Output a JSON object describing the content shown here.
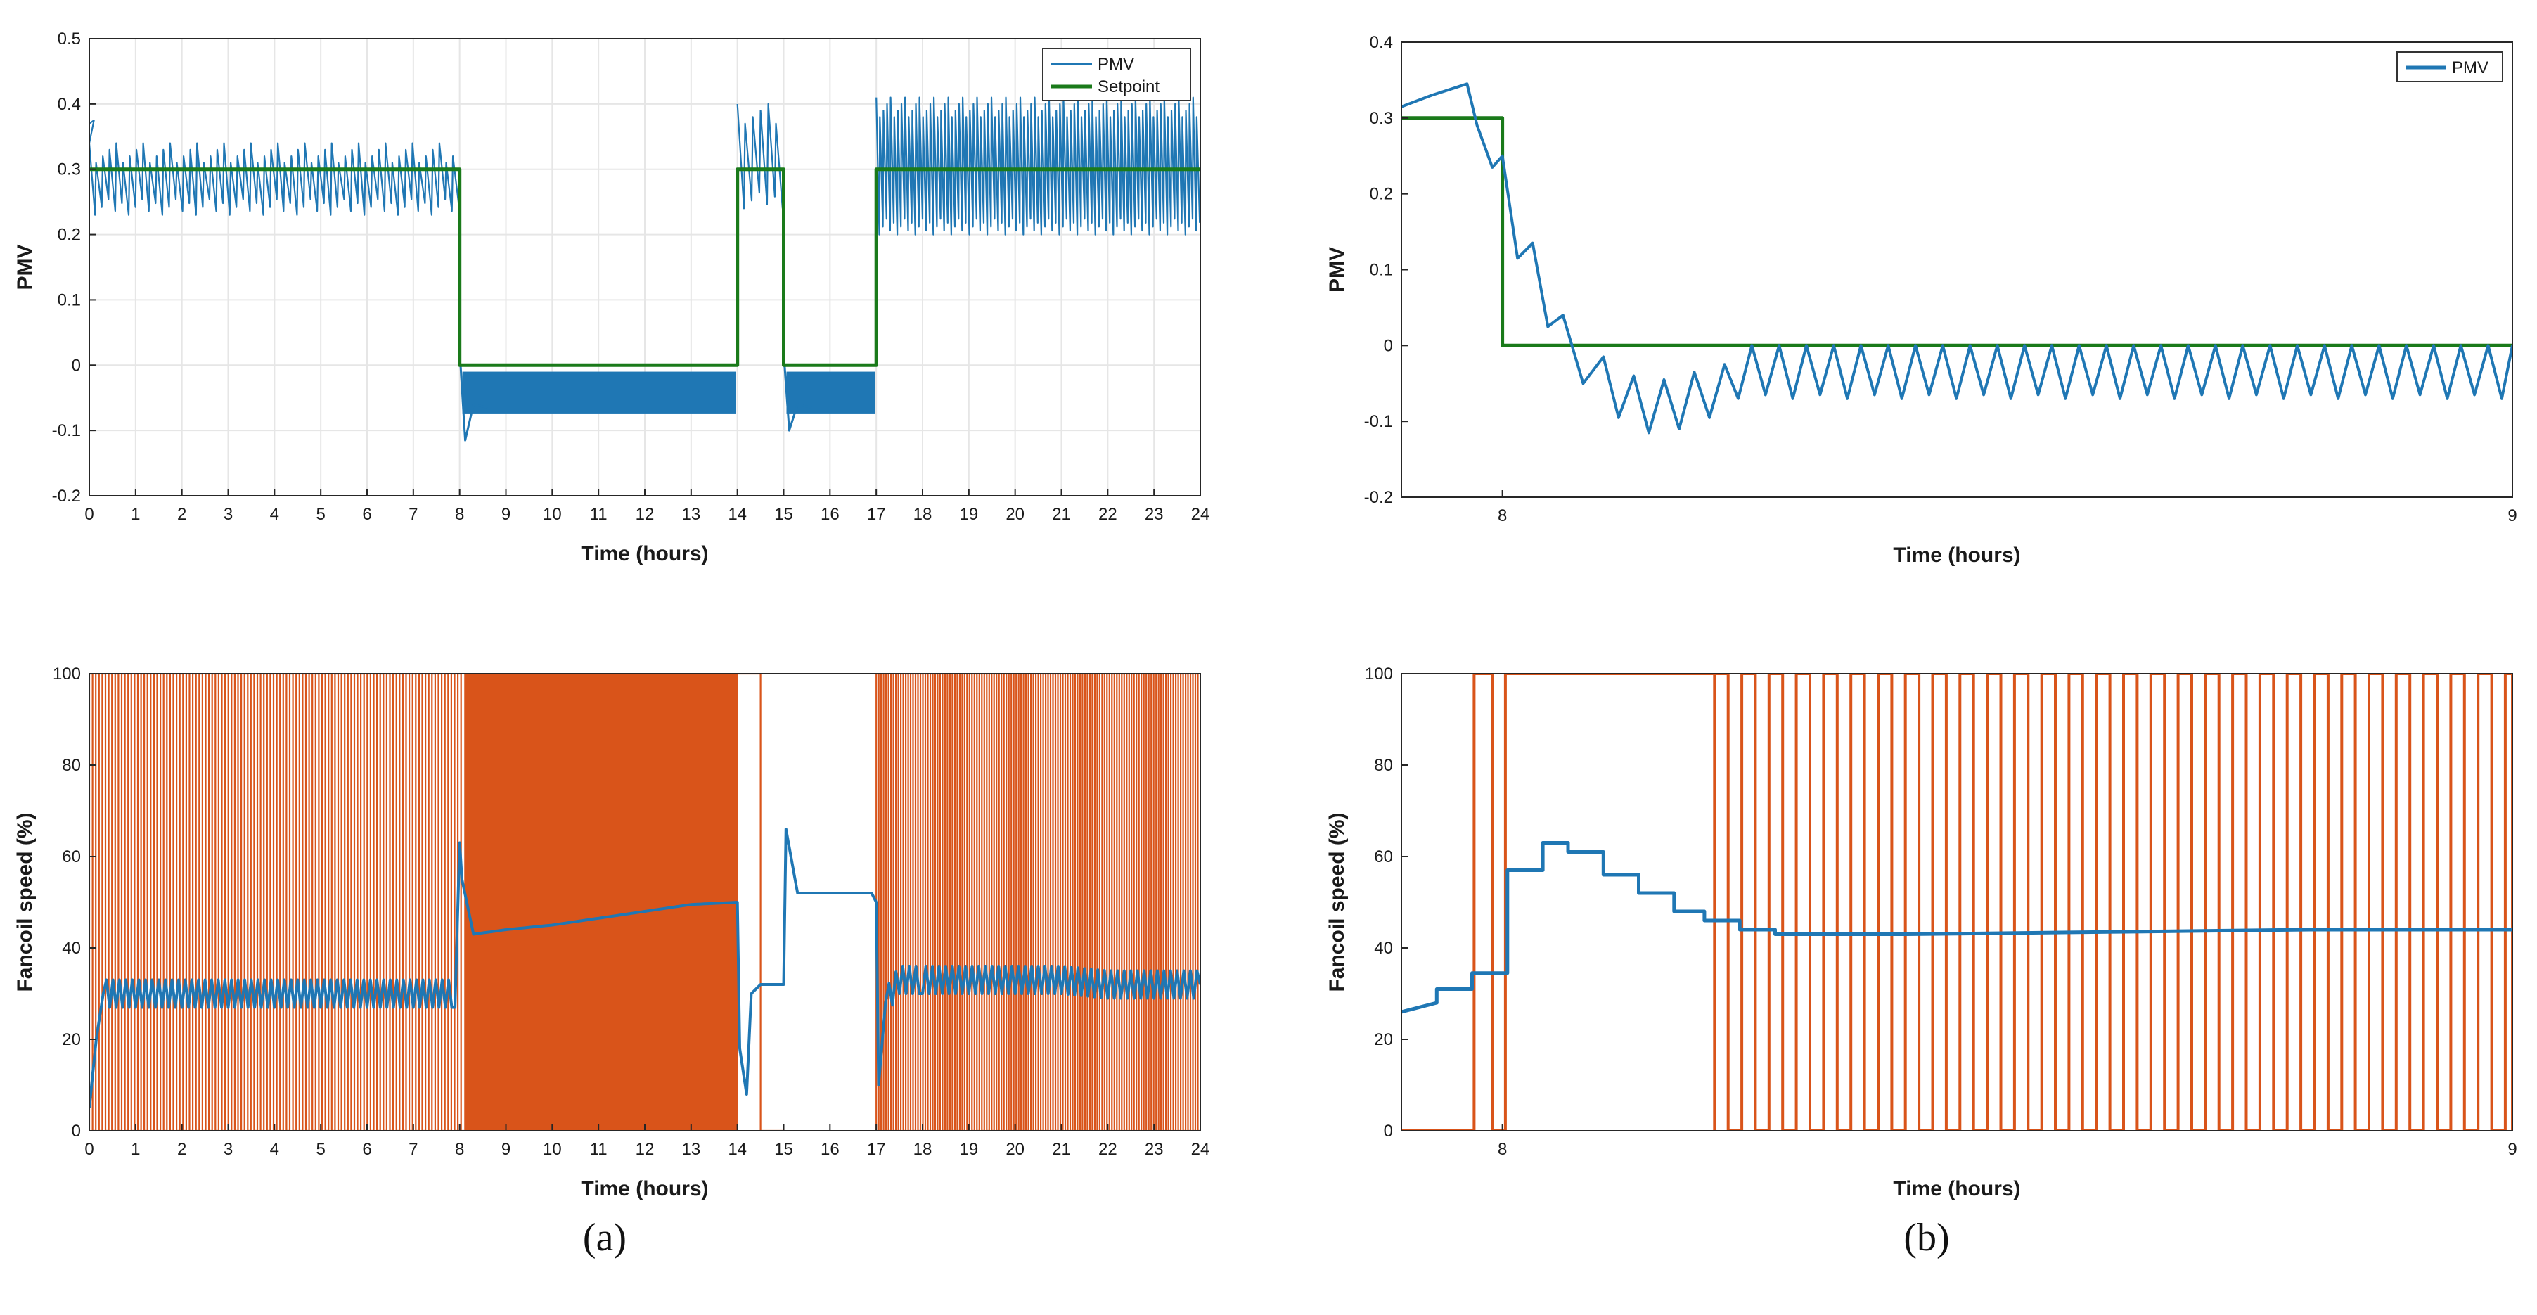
{
  "colors": {
    "pmv": "#1f77b4",
    "setpoint": "#1a7a1a",
    "fan_onoff": "#d9541a",
    "fan_speed": "#1f77b4",
    "grid": "#e6e6e6",
    "axis": "#262626"
  },
  "panel_labels": [
    "(a)",
    "(b)"
  ],
  "chart_data": [
    {
      "type": "line",
      "id": "a-pmv",
      "xlabel": "Time (hours)",
      "ylabel": "PMV",
      "xlim": [
        0,
        24
      ],
      "ylim": [
        -0.2,
        0.5
      ],
      "xticks": [
        0,
        1,
        2,
        3,
        4,
        5,
        6,
        7,
        8,
        9,
        10,
        11,
        12,
        13,
        14,
        15,
        16,
        17,
        18,
        19,
        20,
        21,
        22,
        23,
        24
      ],
      "yticks": [
        -0.2,
        -0.1,
        0,
        0.1,
        0.2,
        0.3,
        0.4,
        0.5
      ],
      "grid": true,
      "legend": {
        "position": "top-right",
        "entries": [
          "PMV",
          "Setpoint"
        ]
      },
      "series": [
        {
          "name": "Setpoint",
          "x": [
            0,
            8,
            8,
            14,
            14,
            15,
            15,
            17,
            17,
            24
          ],
          "y": [
            0.3,
            0.3,
            0,
            0,
            0.3,
            0.3,
            0,
            0,
            0.3,
            0.3
          ]
        },
        {
          "name": "PMV",
          "description_segments": [
            {
              "x_start": 0,
              "x_end": 8,
              "mode": "sawtooth",
              "low": 0.23,
              "high": 0.34,
              "cycles": 55
            },
            {
              "x_start": 8,
              "x_end": 14,
              "mode": "dense-band",
              "low": -0.075,
              "high": 0.0,
              "dip": -0.115
            },
            {
              "x_start": 14,
              "x_end": 15,
              "mode": "sawtooth",
              "low": 0.24,
              "high": 0.4,
              "cycles": 6
            },
            {
              "x_start": 15,
              "x_end": 17,
              "mode": "dense-band",
              "low": -0.075,
              "high": 0.0,
              "dip": -0.1
            },
            {
              "x_start": 17,
              "x_end": 24,
              "mode": "sawtooth",
              "low": 0.2,
              "high": 0.41,
              "cycles": 90
            }
          ]
        }
      ]
    },
    {
      "type": "line",
      "id": "b-pmv",
      "xlabel": "Time (hours)",
      "ylabel": "PMV",
      "xlim": [
        7.9,
        9.0
      ],
      "ylim": [
        -0.2,
        0.4
      ],
      "xticks": [
        8,
        9
      ],
      "yticks": [
        -0.2,
        -0.1,
        0,
        0.1,
        0.2,
        0.3,
        0.4
      ],
      "grid": false,
      "legend": {
        "position": "top-right",
        "entries": [
          "PMV"
        ]
      },
      "series": [
        {
          "name": "Setpoint",
          "x": [
            7.9,
            8.0,
            8.0,
            9.0
          ],
          "y": [
            0.3,
            0.3,
            0,
            0
          ]
        },
        {
          "name": "PMV",
          "x": [
            7.9,
            7.93,
            7.965,
            7.975,
            7.99,
            8.0,
            8.015,
            8.03,
            8.045,
            8.06,
            8.08,
            8.1,
            8.115,
            8.13,
            8.145,
            8.16,
            8.175,
            8.19,
            8.205,
            8.22
          ],
          "y": [
            0.315,
            0.33,
            0.345,
            0.29,
            0.235,
            0.25,
            0.115,
            0.135,
            0.025,
            0.04,
            -0.05,
            -0.015,
            -0.095,
            -0.04,
            -0.115,
            -0.045,
            -0.11,
            -0.035,
            -0.095,
            -0.025
          ],
          "tail": {
            "x_start": 8.22,
            "x_end": 9.0,
            "low": -0.07,
            "high": 0.0,
            "period": 0.027
          }
        }
      ]
    },
    {
      "type": "line",
      "id": "a-fan",
      "xlabel": "Time (hours)",
      "ylabel": "Fancoil speed (%)",
      "xlim": [
        0,
        24
      ],
      "ylim": [
        0,
        100
      ],
      "xticks": [
        0,
        1,
        2,
        3,
        4,
        5,
        6,
        7,
        8,
        9,
        10,
        11,
        12,
        13,
        14,
        15,
        16,
        17,
        18,
        19,
        20,
        21,
        22,
        23,
        24
      ],
      "yticks": [
        0,
        20,
        40,
        60,
        80,
        100
      ],
      "grid": false,
      "series": [
        {
          "name": "Fan on/off",
          "segments": [
            {
              "x_start": 0,
              "x_end": 8.1,
              "mode": "square-wave",
              "low": 0,
              "high": 100,
              "cycles": 58
            },
            {
              "x_start": 8.1,
              "x_end": 14,
              "mode": "solid",
              "low": 0,
              "high": 100
            },
            {
              "x_start": 14,
              "x_end": 15,
              "mode": "square-wave",
              "low": 0,
              "high": 100,
              "cycles": 1
            },
            {
              "x_start": 15,
              "x_end": 17,
              "mode": "off",
              "value": 0
            },
            {
              "x_start": 17,
              "x_end": 24,
              "mode": "square-wave",
              "low": 0,
              "high": 100,
              "cycles": 66
            }
          ]
        },
        {
          "name": "Fan speed",
          "x": [
            0,
            0.15,
            0.3,
            1,
            2,
            3,
            4,
            5,
            6,
            7,
            7.9,
            8.0,
            8.05,
            8.3,
            9,
            10,
            11,
            12,
            13,
            14,
            14.05,
            14.2,
            14.3,
            14.5,
            15.0,
            15.05,
            15.3,
            16,
            16.9,
            17.0,
            17.05,
            17.2,
            17.5,
            18,
            19,
            20,
            21,
            22,
            23,
            24
          ],
          "y": [
            5,
            20,
            30,
            30,
            30,
            30,
            30,
            30,
            30,
            30,
            30,
            63,
            55,
            43,
            44,
            45,
            46.5,
            48,
            49.5,
            50,
            18,
            8,
            30,
            32,
            32,
            66,
            52,
            52,
            52,
            50,
            10,
            28,
            33,
            33,
            33,
            33,
            33,
            32,
            32,
            32
          ],
          "ripple": 3
        }
      ]
    },
    {
      "type": "line",
      "id": "b-fan",
      "xlabel": "Time (hours)",
      "ylabel": "Fancoil speed (%)",
      "xlim": [
        7.9,
        9.0
      ],
      "ylim": [
        0,
        100
      ],
      "xticks": [
        8,
        9
      ],
      "yticks": [
        0,
        20,
        40,
        60,
        80,
        100
      ],
      "grid": false,
      "series": [
        {
          "name": "Fan on/off",
          "x": [
            7.9,
            7.972,
            7.972,
            7.99,
            7.99,
            8.003,
            8.003,
            8.21,
            8.21
          ],
          "y": [
            0,
            0,
            100,
            100,
            0,
            0,
            100,
            100,
            0
          ],
          "tail": {
            "x_start": 8.21,
            "x_end": 9.0,
            "low": 0,
            "high": 100,
            "period": 0.027
          }
        },
        {
          "name": "Fan speed",
          "x": [
            7.9,
            7.935,
            7.935,
            7.97,
            7.97,
            8.005,
            8.005,
            8.04,
            8.04,
            8.065,
            8.065,
            8.1,
            8.1,
            8.135,
            8.135,
            8.17,
            8.17,
            8.2,
            8.2,
            8.235,
            8.235,
            8.27,
            8.27,
            8.4,
            8.6,
            8.8,
            9.0
          ],
          "y": [
            26,
            28,
            31,
            31,
            34.5,
            34.5,
            57,
            57,
            63,
            63,
            61,
            61,
            56,
            56,
            52,
            52,
            48,
            48,
            46,
            46,
            44,
            44,
            43,
            43,
            43.5,
            44,
            44
          ]
        }
      ]
    }
  ]
}
